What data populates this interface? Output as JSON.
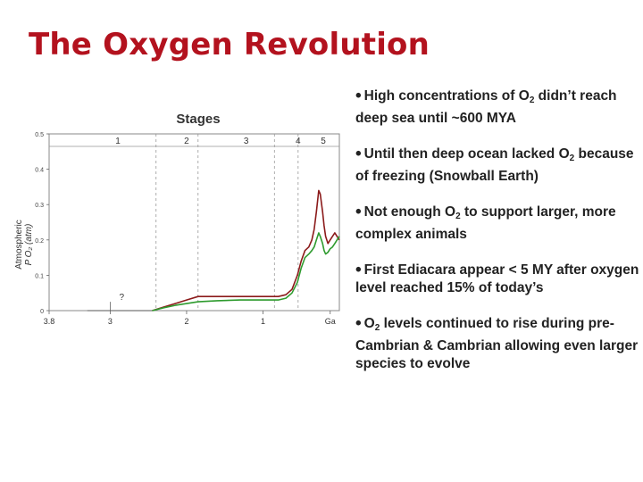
{
  "title": "The Oxygen Revolution",
  "chart_data": {
    "type": "line",
    "title": "Stages",
    "ylabel_line1": "Atmospheric",
    "ylabel_line2": "P O₂ (atm)",
    "xlim": [
      3.8,
      0
    ],
    "ylim": [
      0,
      0.5
    ],
    "x_ticks": [
      "3.8",
      "3",
      "2",
      "1",
      "Ga"
    ],
    "x_tick_values": [
      3.8,
      3,
      2,
      1,
      0.12
    ],
    "y_ticks": [
      "0.5",
      "0.4",
      "0.3",
      "0.2",
      "0.1",
      "0"
    ],
    "y_tick_values": [
      0.5,
      0.4,
      0.3,
      0.2,
      0.1,
      0
    ],
    "stage_labels": [
      "1",
      "2",
      "3",
      "4",
      "5"
    ],
    "stage_label_x": [
      2.9,
      2.0,
      1.22,
      0.54,
      0.21
    ],
    "stage_boundaries": [
      2.4,
      1.85,
      0.85,
      0.54
    ],
    "annotation": "?",
    "annotation_at": [
      2.85,
      0.03
    ],
    "series": [
      {
        "color": "#8b1a1a",
        "points": [
          [
            2.45,
            0
          ],
          [
            2.3,
            0.01
          ],
          [
            2.15,
            0.02
          ],
          [
            2.0,
            0.03
          ],
          [
            1.85,
            0.04
          ],
          [
            1.6,
            0.04
          ],
          [
            1.3,
            0.04
          ],
          [
            1.0,
            0.04
          ],
          [
            0.8,
            0.04
          ],
          [
            0.7,
            0.045
          ],
          [
            0.62,
            0.06
          ],
          [
            0.55,
            0.1
          ],
          [
            0.5,
            0.14
          ],
          [
            0.45,
            0.17
          ],
          [
            0.4,
            0.18
          ],
          [
            0.36,
            0.2
          ],
          [
            0.33,
            0.23
          ],
          [
            0.3,
            0.28
          ],
          [
            0.27,
            0.34
          ],
          [
            0.25,
            0.33
          ],
          [
            0.22,
            0.28
          ],
          [
            0.2,
            0.24
          ],
          [
            0.18,
            0.21
          ],
          [
            0.15,
            0.19
          ],
          [
            0.12,
            0.2
          ],
          [
            0.09,
            0.21
          ],
          [
            0.06,
            0.22
          ],
          [
            0.03,
            0.21
          ],
          [
            0.0,
            0.2
          ]
        ]
      },
      {
        "color": "#2e9b2e",
        "points": [
          [
            2.45,
            0
          ],
          [
            2.3,
            0.008
          ],
          [
            2.15,
            0.015
          ],
          [
            2.0,
            0.02
          ],
          [
            1.85,
            0.025
          ],
          [
            1.6,
            0.028
          ],
          [
            1.3,
            0.03
          ],
          [
            1.0,
            0.03
          ],
          [
            0.8,
            0.03
          ],
          [
            0.7,
            0.035
          ],
          [
            0.62,
            0.05
          ],
          [
            0.55,
            0.08
          ],
          [
            0.5,
            0.12
          ],
          [
            0.45,
            0.15
          ],
          [
            0.4,
            0.16
          ],
          [
            0.36,
            0.17
          ],
          [
            0.33,
            0.18
          ],
          [
            0.3,
            0.2
          ],
          [
            0.27,
            0.22
          ],
          [
            0.25,
            0.21
          ],
          [
            0.22,
            0.19
          ],
          [
            0.2,
            0.17
          ],
          [
            0.18,
            0.16
          ],
          [
            0.15,
            0.165
          ],
          [
            0.12,
            0.175
          ],
          [
            0.09,
            0.18
          ],
          [
            0.06,
            0.19
          ],
          [
            0.03,
            0.2
          ],
          [
            0.0,
            0.21
          ]
        ]
      }
    ]
  },
  "bullets": [
    {
      "parts": [
        "High concentrations of O",
        "2",
        " didn’t reach deep sea until ~600 MYA"
      ]
    },
    {
      "parts": [
        "Until then deep ocean lacked O",
        "2",
        " because of freezing (Snowball Earth)"
      ]
    },
    {
      "parts": [
        "Not enough O",
        "2",
        "  to support larger, more complex animals"
      ]
    },
    {
      "parts": [
        "First Ediacara appear < 5 MY after oxygen level reached 15% of today’s",
        "",
        ""
      ]
    },
    {
      "parts": [
        "O",
        "2",
        " levels continued to rise during pre-Cambrian &  Cambrian allowing even larger species to evolve"
      ]
    }
  ]
}
